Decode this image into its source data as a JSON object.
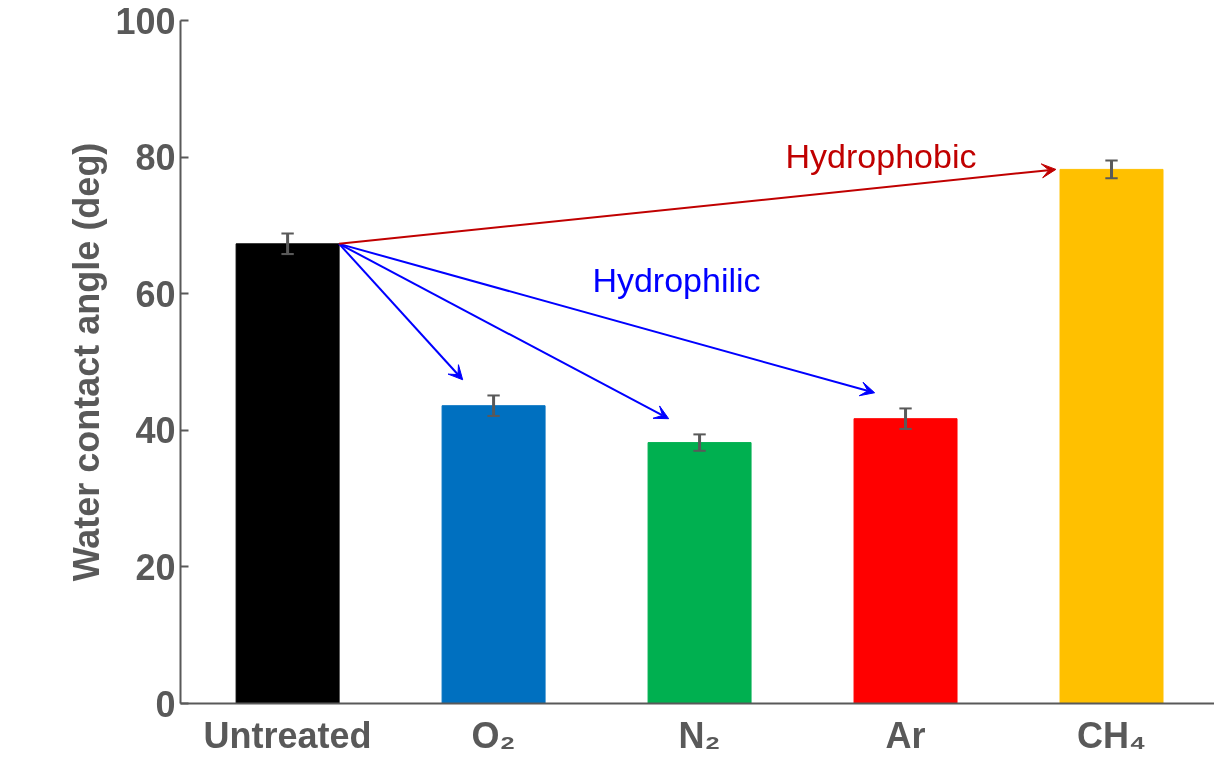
{
  "chart_data": {
    "type": "bar",
    "ylabel": "Water contact angle (deg)",
    "categories": [
      "Untreated",
      "O₂",
      "N₂",
      "Ar",
      "CH₄"
    ],
    "values": [
      67.3,
      43.6,
      38.2,
      41.7,
      78.2
    ],
    "colors": [
      "#000000",
      "#0070c0",
      "#00b050",
      "#ff0000",
      "#ffc000"
    ],
    "errors": [
      1.5,
      1.5,
      1.2,
      1.5,
      1.3
    ],
    "ylim": [
      0,
      100
    ],
    "yticks": [
      0,
      20,
      40,
      60,
      80,
      100
    ],
    "annotations": [
      "Hydrophobic",
      "Hydrophilic"
    ]
  }
}
